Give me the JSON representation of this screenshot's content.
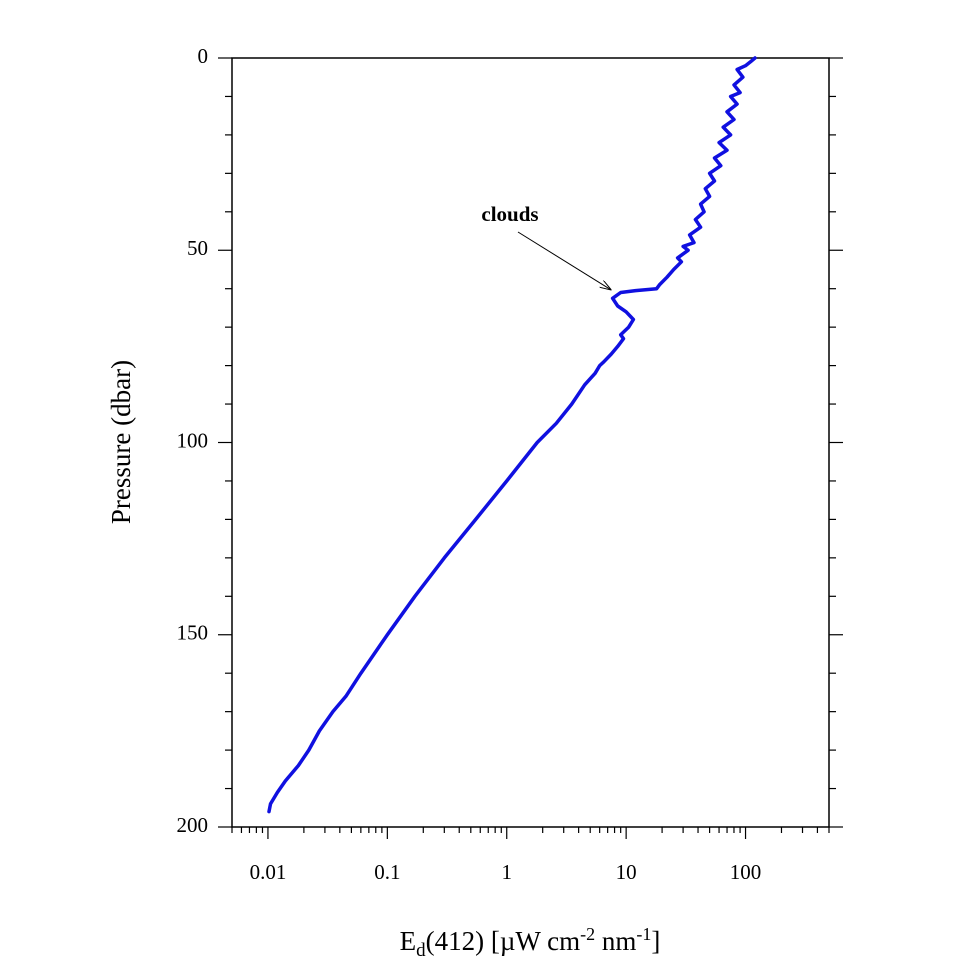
{
  "chart_data": {
    "type": "line",
    "xlabel": "E",
    "xlabel_sub": "d",
    "xlabel_rest": "(412) [µW cm",
    "xlabel_sup1": "-2",
    "xlabel_mid": " nm",
    "xlabel_sup2": "-1",
    "xlabel_end": "]",
    "ylabel": "Pressure (dbar)",
    "x_scale": "log",
    "xlim": [
      0.005,
      500
    ],
    "ylim": [
      200,
      0
    ],
    "y_inverted": true,
    "x_ticks": [
      0.01,
      0.1,
      1,
      10,
      100
    ],
    "x_tick_labels": [
      "0.01",
      "0.1",
      "1",
      "10",
      "100"
    ],
    "y_ticks": [
      0,
      50,
      100,
      150,
      200
    ],
    "y_tick_labels": [
      "0",
      "50",
      "100",
      "150",
      "200"
    ],
    "grid": false,
    "line_color": "#1010e0",
    "annotation": {
      "text": "clouds",
      "target_x": 7.7,
      "target_y": 61
    },
    "series": [
      {
        "x": [
          120,
          110,
          100,
          85,
          95,
          80,
          90,
          75,
          85,
          70,
          80,
          65,
          75,
          60,
          70,
          55,
          62,
          50,
          55,
          46,
          50,
          42,
          45,
          38,
          42,
          34,
          37,
          30,
          33,
          27,
          29,
          25,
          22,
          19,
          18,
          12,
          9,
          7.7,
          8.5,
          10,
          11.5,
          10.5,
          9,
          9.5,
          8.5,
          7.5,
          6.5,
          6,
          5.5,
          4.5,
          3.5,
          2.6,
          1.8,
          1.0,
          0.55,
          0.3,
          0.17,
          0.1,
          0.06,
          0.045,
          0.035,
          0.027,
          0.022,
          0.018,
          0.014,
          0.012,
          0.0105,
          0.0102
        ],
        "y": [
          0,
          1,
          2,
          3,
          5,
          7,
          9,
          10,
          12,
          14,
          16,
          18,
          20,
          22,
          24,
          26,
          28,
          30,
          32,
          34,
          36,
          38,
          40,
          42,
          44,
          46,
          48,
          49,
          50,
          52,
          53,
          55,
          57,
          59,
          60,
          60.5,
          61,
          62.5,
          64.5,
          66,
          68,
          70,
          72,
          73,
          75,
          77,
          79,
          80,
          82,
          85,
          90,
          95,
          100,
          110,
          120,
          130,
          140,
          150,
          160,
          166,
          170,
          175,
          180,
          184,
          188,
          191,
          194,
          196
        ]
      }
    ]
  }
}
